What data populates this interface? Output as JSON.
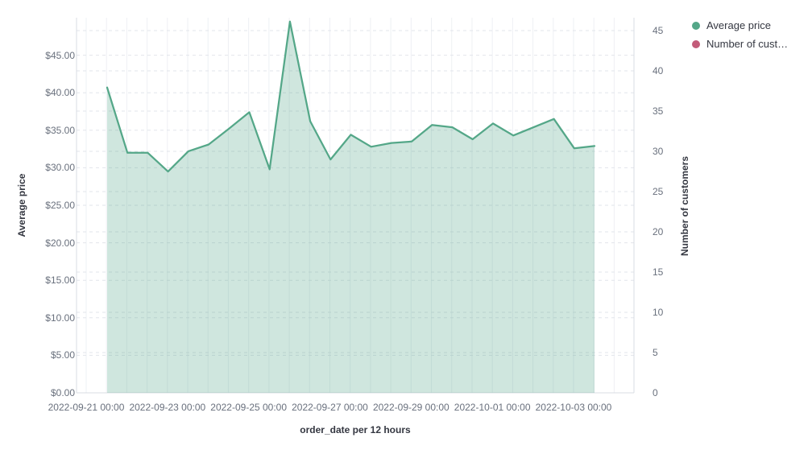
{
  "legend": {
    "items": [
      {
        "label": "Average price",
        "color": "#54a788"
      },
      {
        "label": "Number of cust…",
        "color": "#c25b79"
      }
    ]
  },
  "chart_data": {
    "type": "area",
    "title": "",
    "x_axis": {
      "title": "order_date per 12 hours",
      "tick_labels": [
        "2022-09-21 00:00",
        "2022-09-23 00:00",
        "2022-09-25 00:00",
        "2022-09-27 00:00",
        "2022-09-29 00:00",
        "2022-10-01 00:00",
        "2022-10-03 00:00"
      ]
    },
    "y_axis_left": {
      "title": "Average price",
      "tick_labels": [
        "$0.00",
        "$5.00",
        "$10.00",
        "$15.00",
        "$20.00",
        "$25.00",
        "$30.00",
        "$35.00",
        "$40.00",
        "$45.00"
      ],
      "tick_values": [
        0,
        5,
        10,
        15,
        20,
        25,
        30,
        35,
        40,
        45
      ],
      "range": [
        0,
        50
      ],
      "grid": "dashed"
    },
    "y_axis_right": {
      "title": "Number of customers",
      "tick_labels": [
        "0",
        "5",
        "10",
        "15",
        "20",
        "25",
        "30",
        "35",
        "40",
        "45"
      ],
      "tick_values": [
        0,
        5,
        10,
        15,
        20,
        25,
        30,
        35,
        40,
        45
      ],
      "range": [
        0,
        46.7
      ],
      "grid": "dashed"
    },
    "series": [
      {
        "name": "Average price",
        "type": "area",
        "axis": "left",
        "color": "#54a788",
        "fill_opacity": 0.28,
        "x": [
          "2022-09-21 12:00",
          "2022-09-22 00:00",
          "2022-09-22 12:00",
          "2022-09-23 00:00",
          "2022-09-23 12:00",
          "2022-09-24 00:00",
          "2022-09-24 12:00",
          "2022-09-25 00:00",
          "2022-09-25 12:00",
          "2022-09-26 00:00",
          "2022-09-26 12:00",
          "2022-09-27 00:00",
          "2022-09-27 12:00",
          "2022-09-28 00:00",
          "2022-09-28 12:00",
          "2022-09-29 00:00",
          "2022-09-29 12:00",
          "2022-09-30 00:00",
          "2022-09-30 12:00",
          "2022-10-01 00:00",
          "2022-10-01 12:00",
          "2022-10-02 00:00",
          "2022-10-02 12:00",
          "2022-10-03 00:00",
          "2022-10-03 12:00"
        ],
        "values": [
          40.7,
          32.0,
          32.0,
          29.5,
          32.2,
          33.1,
          35.2,
          37.4,
          29.8,
          49.5,
          36.2,
          31.1,
          34.4,
          32.8,
          33.3,
          33.5,
          35.7,
          35.4,
          33.8,
          35.9,
          34.3,
          35.4,
          36.5,
          32.6,
          32.9
        ]
      },
      {
        "name": "Number of cust…",
        "type": "line",
        "axis": "right",
        "color": "#c25b79",
        "values": []
      }
    ],
    "legend_position": "right",
    "colors": {
      "grid_vertical": "#eef0f4",
      "grid_dashed": "#e2e5eb",
      "axis_line": "#d8dce3",
      "tick_text": "#69707d",
      "title_text": "#343741"
    }
  }
}
